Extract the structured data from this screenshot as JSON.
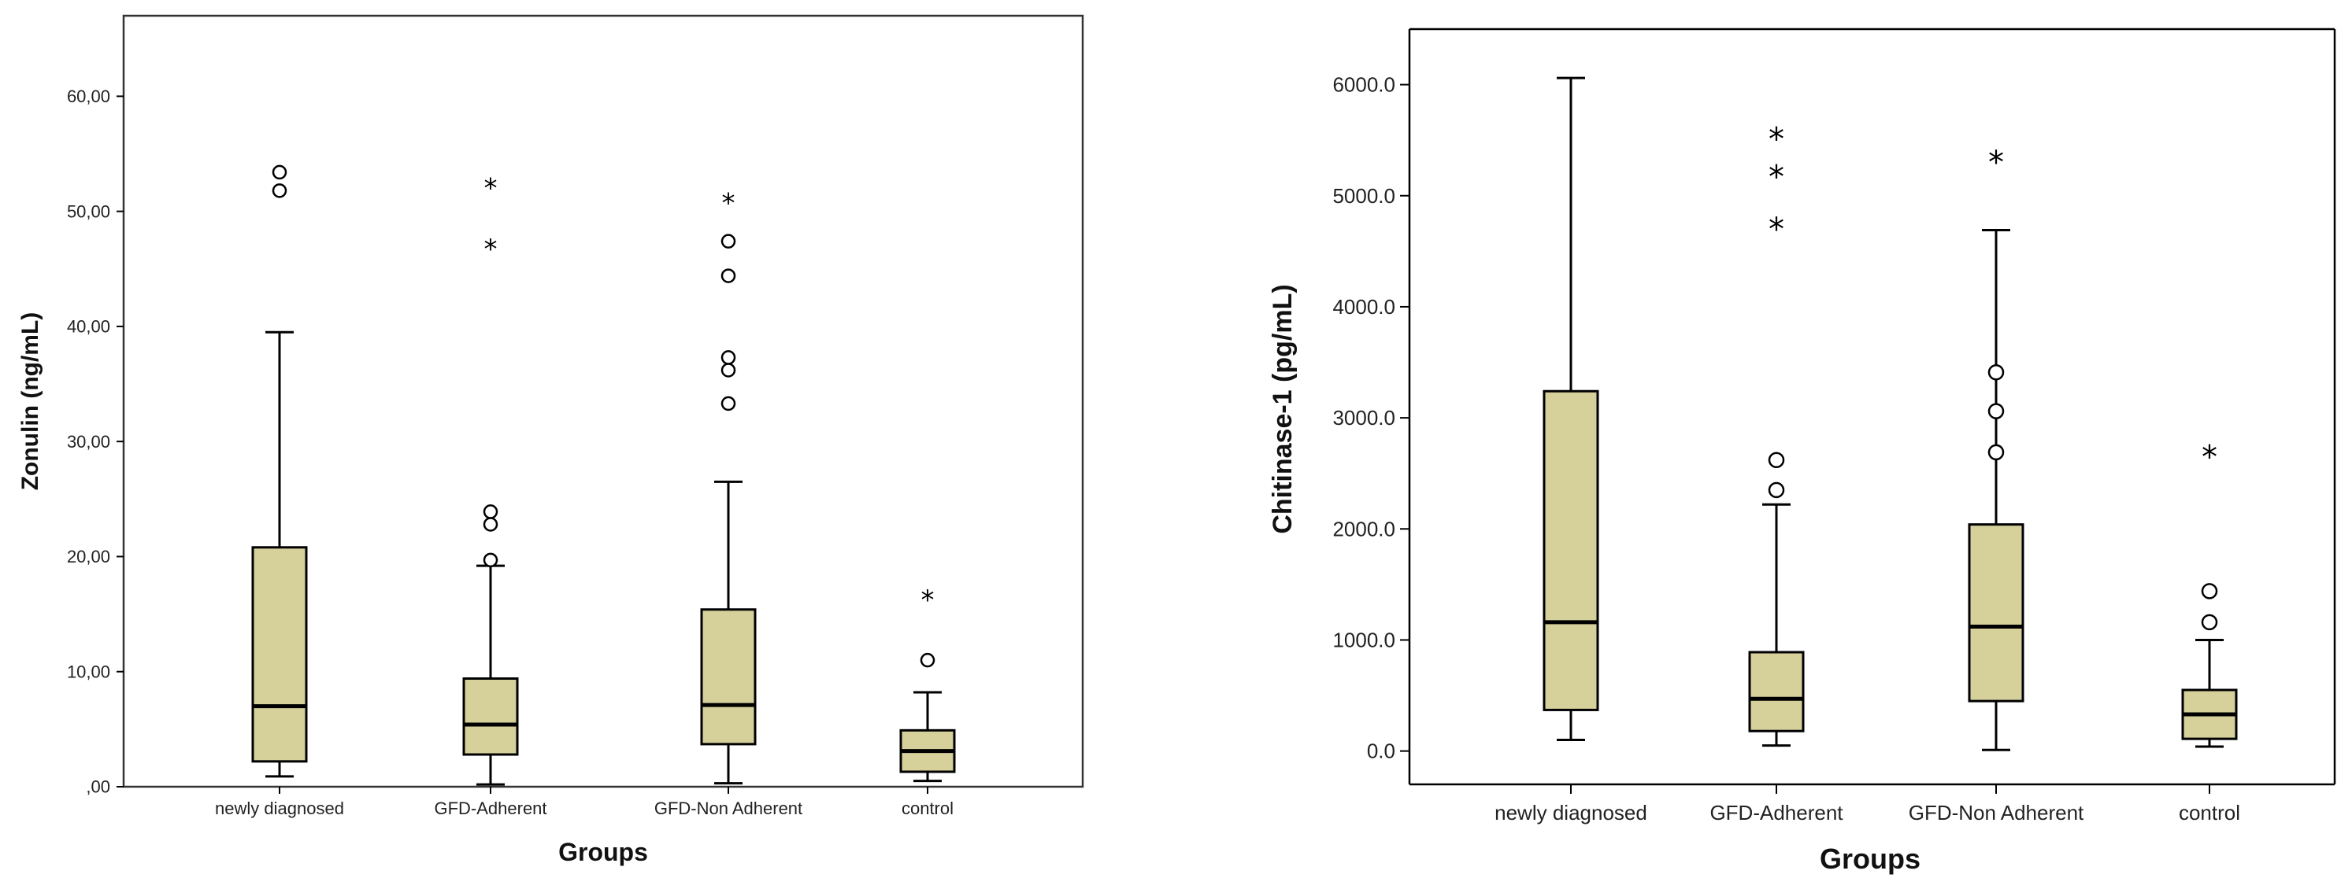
{
  "colors": {
    "box_fill": "#d6d09a",
    "line": "#000000",
    "frame": "#333333",
    "background": "#ffffff"
  },
  "chart_data": [
    {
      "type": "boxplot",
      "title": "",
      "xlabel": "Groups",
      "ylabel": "Zonulin (ng/mL)",
      "ylim": [
        0,
        67
      ],
      "yticks": [
        0,
        10,
        20,
        30,
        40,
        50,
        60
      ],
      "ytick_labels": [
        ",00",
        "10,00",
        "20,00",
        "30,00",
        "40,00",
        "50,00",
        "60,00"
      ],
      "categories": [
        "newly diagnosed",
        "GFD-Adherent",
        "GFD-Non Adherent",
        "control"
      ],
      "boxes": [
        {
          "whisker_low": 0.9,
          "q1": 2.2,
          "median": 7.0,
          "q3": 20.8,
          "whisker_high": 39.5,
          "outliers": [
            51.8,
            53.4
          ],
          "extremes": []
        },
        {
          "whisker_low": 0.2,
          "q1": 2.8,
          "median": 5.4,
          "q3": 9.4,
          "whisker_high": 19.2,
          "outliers": [
            19.7,
            22.8,
            23.9
          ],
          "extremes": [
            47.0,
            52.3
          ]
        },
        {
          "whisker_low": 0.3,
          "q1": 3.7,
          "median": 7.1,
          "q3": 15.4,
          "whisker_high": 26.5,
          "outliers": [
            33.3,
            36.2,
            37.3,
            44.4,
            47.4
          ],
          "extremes": [
            51.0
          ]
        },
        {
          "whisker_low": 0.5,
          "q1": 1.3,
          "median": 3.1,
          "q3": 4.9,
          "whisker_high": 8.2,
          "outliers": [
            11.0
          ],
          "extremes": [
            16.5
          ]
        }
      ],
      "grid": false
    },
    {
      "type": "boxplot",
      "title": "",
      "xlabel": "Groups",
      "ylabel": "Chitinase-1 (pg/mL)",
      "ylim": [
        -300,
        6500
      ],
      "yticks": [
        0,
        1000,
        2000,
        3000,
        4000,
        5000,
        6000
      ],
      "ytick_labels": [
        "0.0",
        "1000.0",
        "2000.0",
        "3000.0",
        "4000.0",
        "5000.0",
        "6000.0"
      ],
      "categories": [
        "newly diagnosed",
        "GFD-Adherent",
        "GFD-Non Adherent",
        "control"
      ],
      "boxes": [
        {
          "whisker_low": 100,
          "q1": 370,
          "median": 1160,
          "q3": 3240,
          "whisker_high": 6060,
          "outliers": [],
          "extremes": []
        },
        {
          "whisker_low": 50,
          "q1": 180,
          "median": 470,
          "q3": 890,
          "whisker_high": 2220,
          "outliers": [
            2350,
            2620
          ],
          "extremes": [
            4730,
            5200,
            5540
          ]
        },
        {
          "whisker_low": 10,
          "q1": 450,
          "median": 1120,
          "q3": 2040,
          "whisker_high": 4690,
          "outliers": [
            2690,
            3060,
            3410
          ],
          "extremes": [
            5330
          ]
        },
        {
          "whisker_low": 40,
          "q1": 110,
          "median": 330,
          "q3": 550,
          "whisker_high": 1000,
          "outliers": [
            1160,
            1440
          ],
          "extremes": [
            2680
          ]
        }
      ],
      "grid": false
    }
  ]
}
